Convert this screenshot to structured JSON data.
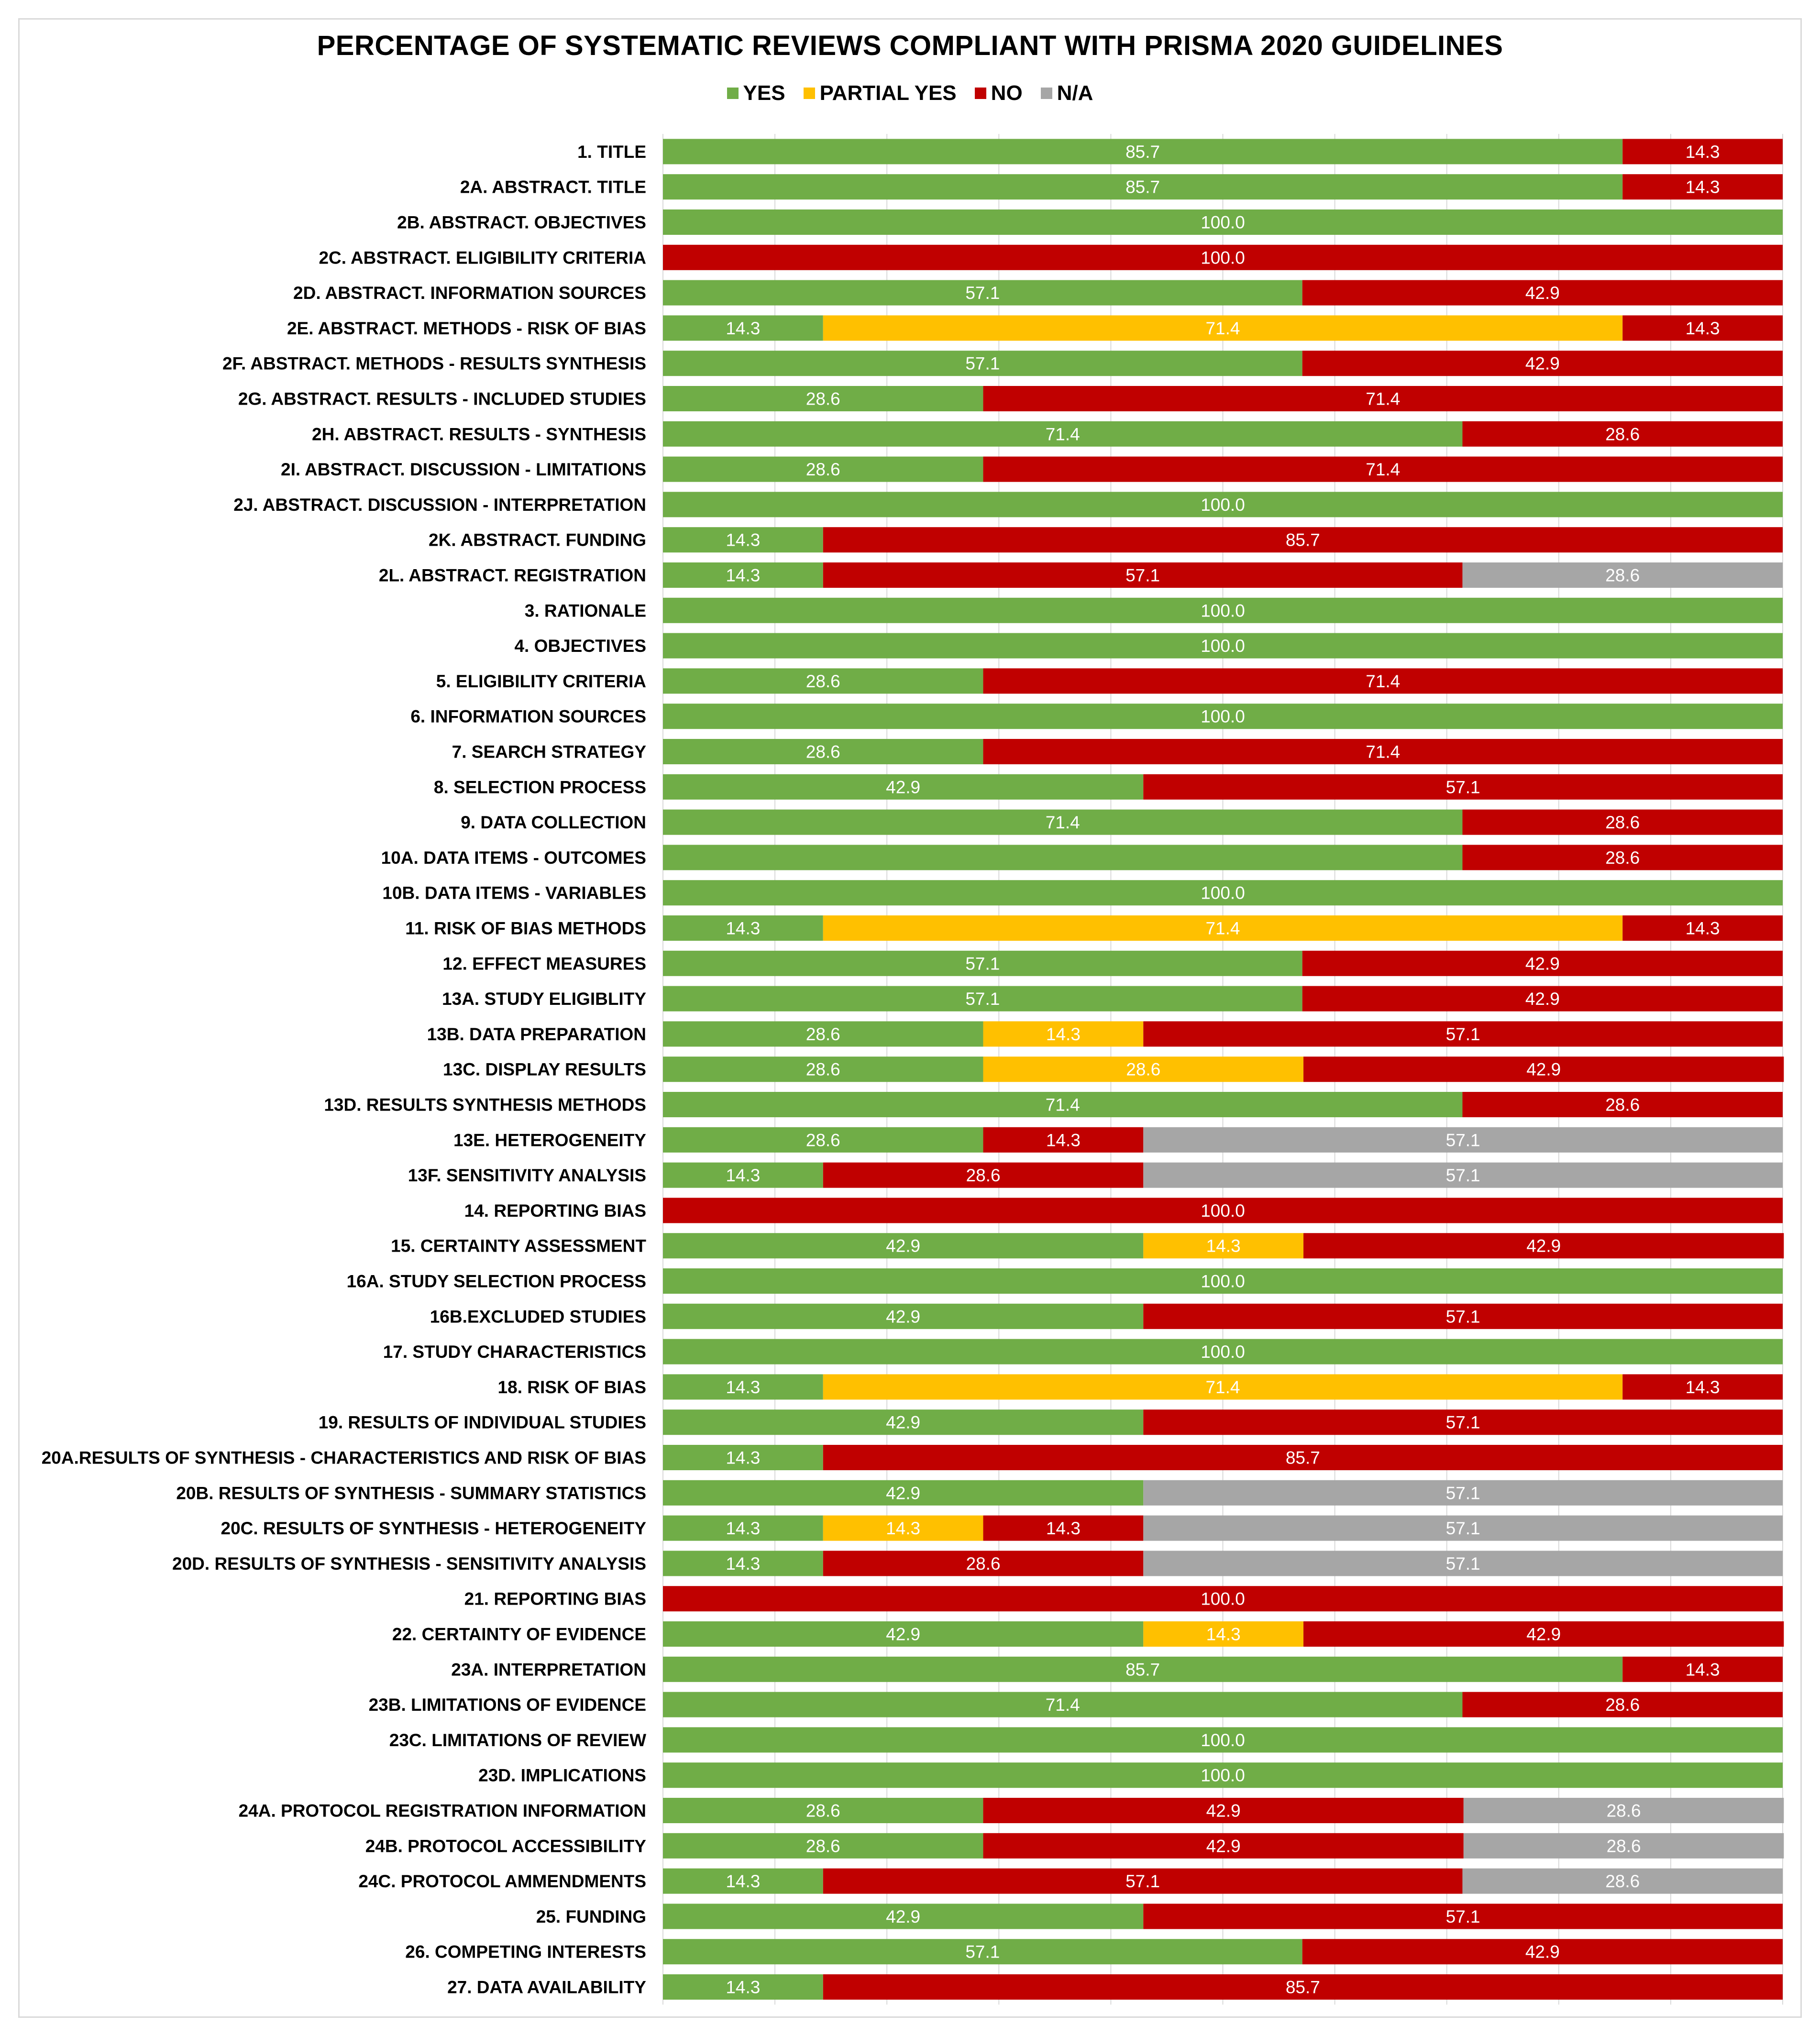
{
  "chart_data": {
    "type": "bar",
    "orientation": "horizontal",
    "stacked": true,
    "title": "PERCENTAGE OF SYSTEMATIC REVIEWS COMPLIANT WITH PRISMA 2020 GUIDELINES",
    "xlabel": "",
    "ylabel": "",
    "xlim": [
      0,
      100
    ],
    "legend_position": "top",
    "series_order": [
      "yes",
      "partial",
      "no",
      "na"
    ],
    "series": [
      {
        "key": "yes",
        "name": "YES",
        "color": "#70ad47"
      },
      {
        "key": "partial",
        "name": "PARTIAL YES",
        "color": "#ffc000"
      },
      {
        "key": "no",
        "name": "NO",
        "color": "#c00000"
      },
      {
        "key": "na",
        "name": "N/A",
        "color": "#a6a6a6"
      }
    ],
    "categories": [
      {
        "label": "1. TITLE",
        "yes": "85.7",
        "partial": null,
        "no": "14.3",
        "na": null
      },
      {
        "label": "2A. ABSTRACT. TITLE",
        "yes": "85.7",
        "partial": null,
        "no": "14.3",
        "na": null
      },
      {
        "label": "2B. ABSTRACT. OBJECTIVES",
        "yes": "100.0",
        "partial": null,
        "no": null,
        "na": null
      },
      {
        "label": "2C. ABSTRACT. ELIGIBILITY CRITERIA",
        "yes": null,
        "partial": null,
        "no": "100.0",
        "na": null
      },
      {
        "label": "2D. ABSTRACT. INFORMATION SOURCES",
        "yes": "57.1",
        "partial": null,
        "no": "42.9",
        "na": null
      },
      {
        "label": "2E. ABSTRACT. METHODS - RISK OF BIAS",
        "yes": "14.3",
        "partial": "71.4",
        "no": "14.3",
        "na": null
      },
      {
        "label": "2F. ABSTRACT. METHODS - RESULTS SYNTHESIS",
        "yes": "57.1",
        "partial": null,
        "no": "42.9",
        "na": null
      },
      {
        "label": "2G. ABSTRACT. RESULTS - INCLUDED STUDIES",
        "yes": "28.6",
        "partial": null,
        "no": "71.4",
        "na": null
      },
      {
        "label": "2H. ABSTRACT. RESULTS - SYNTHESIS",
        "yes": "71.4",
        "partial": null,
        "no": "28.6",
        "na": null
      },
      {
        "label": "2I. ABSTRACT. DISCUSSION - LIMITATIONS",
        "yes": "28.6",
        "partial": null,
        "no": "71.4",
        "na": null
      },
      {
        "label": "2J. ABSTRACT. DISCUSSION - INTERPRETATION",
        "yes": "100.0",
        "partial": null,
        "no": null,
        "na": null
      },
      {
        "label": "2K. ABSTRACT. FUNDING",
        "yes": "14.3",
        "partial": null,
        "no": "85.7",
        "na": null
      },
      {
        "label": "2L. ABSTRACT. REGISTRATION",
        "yes": "14.3",
        "partial": null,
        "no": "57.1",
        "na": "28.6"
      },
      {
        "label": "3. RATIONALE",
        "yes": "100.0",
        "partial": null,
        "no": null,
        "na": null
      },
      {
        "label": "4. OBJECTIVES",
        "yes": "100.0",
        "partial": null,
        "no": null,
        "na": null
      },
      {
        "label": "5. ELIGIBILITY CRITERIA",
        "yes": "28.6",
        "partial": null,
        "no": "71.4",
        "na": null
      },
      {
        "label": "6. INFORMATION SOURCES",
        "yes": "100.0",
        "partial": null,
        "no": null,
        "na": null
      },
      {
        "label": "7. SEARCH STRATEGY",
        "yes": "28.6",
        "partial": null,
        "no": "71.4",
        "na": null
      },
      {
        "label": "8. SELECTION PROCESS",
        "yes": "42.9",
        "partial": null,
        "no": "57.1",
        "na": null
      },
      {
        "label": "9. DATA COLLECTION",
        "yes": "71.4",
        "partial": null,
        "no": "28.6",
        "na": null
      },
      {
        "label": "10A. DATA ITEMS - OUTCOMES",
        "yes": "71.4",
        "partial": null,
        "no": "28.6",
        "na": null,
        "hidden_labels": [
          "yes"
        ]
      },
      {
        "label": "10B. DATA ITEMS - VARIABLES",
        "yes": "100.0",
        "partial": null,
        "no": null,
        "na": null
      },
      {
        "label": "11. RISK OF BIAS METHODS",
        "yes": "14.3",
        "partial": "71.4",
        "no": "14.3",
        "na": null
      },
      {
        "label": "12. EFFECT MEASURES",
        "yes": "57.1",
        "partial": null,
        "no": "42.9",
        "na": null
      },
      {
        "label": "13A. STUDY ELIGIBLITY",
        "yes": "57.1",
        "partial": null,
        "no": "42.9",
        "na": null
      },
      {
        "label": "13B. DATA PREPARATION",
        "yes": "28.6",
        "partial": "14.3",
        "no": "57.1",
        "na": null
      },
      {
        "label": "13C. DISPLAY RESULTS",
        "yes": "28.6",
        "partial": "28.6",
        "no": "42.9",
        "na": null
      },
      {
        "label": "13D. RESULTS SYNTHESIS METHODS",
        "yes": "71.4",
        "partial": null,
        "no": "28.6",
        "na": null
      },
      {
        "label": "13E. HETEROGENEITY",
        "yes": "28.6",
        "partial": null,
        "no": "14.3",
        "na": "57.1"
      },
      {
        "label": "13F. SENSITIVITY ANALYSIS",
        "yes": "14.3",
        "partial": null,
        "no": "28.6",
        "na": "57.1"
      },
      {
        "label": "14. REPORTING BIAS",
        "yes": null,
        "partial": null,
        "no": "100.0",
        "na": null
      },
      {
        "label": "15. CERTAINTY ASSESSMENT",
        "yes": "42.9",
        "partial": "14.3",
        "no": "42.9",
        "na": null
      },
      {
        "label": "16A. STUDY SELECTION PROCESS",
        "yes": "100.0",
        "partial": null,
        "no": null,
        "na": null
      },
      {
        "label": "16B.EXCLUDED STUDIES",
        "yes": "42.9",
        "partial": null,
        "no": "57.1",
        "na": null
      },
      {
        "label": "17. STUDY CHARACTERISTICS",
        "yes": "100.0",
        "partial": null,
        "no": null,
        "na": null
      },
      {
        "label": "18. RISK OF BIAS",
        "yes": "14.3",
        "partial": "71.4",
        "no": "14.3",
        "na": null
      },
      {
        "label": "19. RESULTS OF INDIVIDUAL STUDIES",
        "yes": "42.9",
        "partial": null,
        "no": "57.1",
        "na": null
      },
      {
        "label": "20A.RESULTS OF SYNTHESIS - CHARACTERISTICS AND RISK OF BIAS",
        "yes": "14.3",
        "partial": null,
        "no": "85.7",
        "na": null
      },
      {
        "label": "20B. RESULTS OF SYNTHESIS - SUMMARY STATISTICS",
        "yes": "42.9",
        "partial": null,
        "no": null,
        "na": "57.1"
      },
      {
        "label": "20C. RESULTS OF SYNTHESIS - HETEROGENEITY",
        "yes": "14.3",
        "partial": "14.3",
        "no": "14.3",
        "na": "57.1"
      },
      {
        "label": "20D. RESULTS OF SYNTHESIS - SENSITIVITY ANALYSIS",
        "yes": "14.3",
        "partial": null,
        "no": "28.6",
        "na": "57.1"
      },
      {
        "label": "21. REPORTING BIAS",
        "yes": null,
        "partial": null,
        "no": "100.0",
        "na": null
      },
      {
        "label": "22. CERTAINTY OF EVIDENCE",
        "yes": "42.9",
        "partial": "14.3",
        "no": "42.9",
        "na": null
      },
      {
        "label": "23A. INTERPRETATION",
        "yes": "85.7",
        "partial": null,
        "no": "14.3",
        "na": null
      },
      {
        "label": "23B. LIMITATIONS OF EVIDENCE",
        "yes": "71.4",
        "partial": null,
        "no": "28.6",
        "na": null
      },
      {
        "label": "23C. LIMITATIONS OF REVIEW",
        "yes": "100.0",
        "partial": null,
        "no": null,
        "na": null
      },
      {
        "label": "23D. IMPLICATIONS",
        "yes": "100.0",
        "partial": null,
        "no": null,
        "na": null
      },
      {
        "label": "24A. PROTOCOL REGISTRATION INFORMATION",
        "yes": "28.6",
        "partial": null,
        "no": "42.9",
        "na": "28.6"
      },
      {
        "label": "24B. PROTOCOL ACCESSIBILITY",
        "yes": "28.6",
        "partial": null,
        "no": "42.9",
        "na": "28.6"
      },
      {
        "label": "24C. PROTOCOL AMMENDMENTS",
        "yes": "14.3",
        "partial": null,
        "no": "57.1",
        "na": "28.6"
      },
      {
        "label": "25. FUNDING",
        "yes": "42.9",
        "partial": null,
        "no": "57.1",
        "na": null
      },
      {
        "label": "26. COMPETING INTERESTS",
        "yes": "57.1",
        "partial": null,
        "no": "42.9",
        "na": null
      },
      {
        "label": "27. DATA AVAILABILITY",
        "yes": "14.3",
        "partial": null,
        "no": "85.7",
        "na": null
      }
    ]
  }
}
